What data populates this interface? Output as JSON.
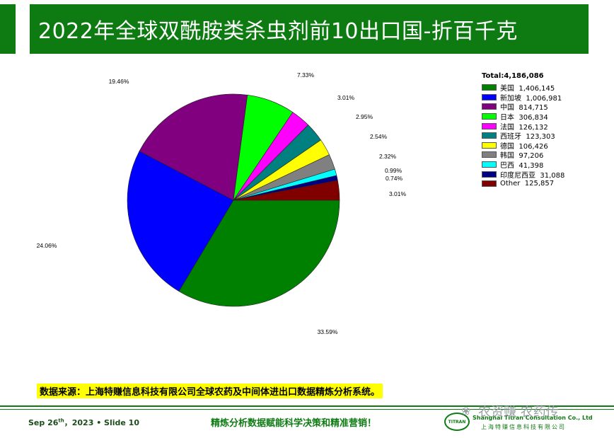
{
  "title": "2022年全球双酰胺类杀虫剂前10出口国-折百千克",
  "chart_data": {
    "type": "pie",
    "total_label": "Total:4,186,086",
    "categories": [
      "美国",
      "新加坡",
      "中国",
      "日本",
      "法国",
      "西班牙",
      "德国",
      "韩国",
      "巴西",
      "印度尼西亚",
      "Other"
    ],
    "values": [
      1406145,
      1006981,
      814715,
      306834,
      126132,
      123303,
      106426,
      97206,
      41398,
      31088,
      125857
    ],
    "value_labels": [
      "1,406,145",
      "1,006,981",
      "814,715",
      "306,834",
      "126,132",
      "123,303",
      "106,426",
      "97,206",
      "41,398",
      "31,088",
      "125,857"
    ],
    "percent_labels": [
      "33.59%",
      "24.06%",
      "19.46%",
      "7.33%",
      "3.01%",
      "2.95%",
      "2.54%",
      "2.32%",
      "0.99%",
      "0.74%",
      "3.01%"
    ],
    "colors": [
      "#008000",
      "#0000ff",
      "#800080",
      "#00ff00",
      "#ff00ff",
      "#008080",
      "#ffff00",
      "#808080",
      "#00ffff",
      "#000080",
      "#800000"
    ]
  },
  "source_text": "数据来源：上海特赚信息科技有限公司全球农药及中间体进出口数据精炼分析系统。",
  "footer": {
    "date_prefix": "Sep 26",
    "date_sup": "th",
    "date_suffix": "，2023 • Slide 10",
    "slogan": "精炼分析数据赋能科学决策和精准营销！",
    "logo_text": "TITRAN",
    "company_en": "Shanghai Titran Consultation Co., Ltd",
    "company_cn": "上海特赚信息科技有限公司",
    "watermark": "农资赚 农药传",
    "watermark_icon": "wechat-icon"
  },
  "colors": {
    "brand_green": "#0e7a12",
    "highlight": "#ffff00"
  }
}
